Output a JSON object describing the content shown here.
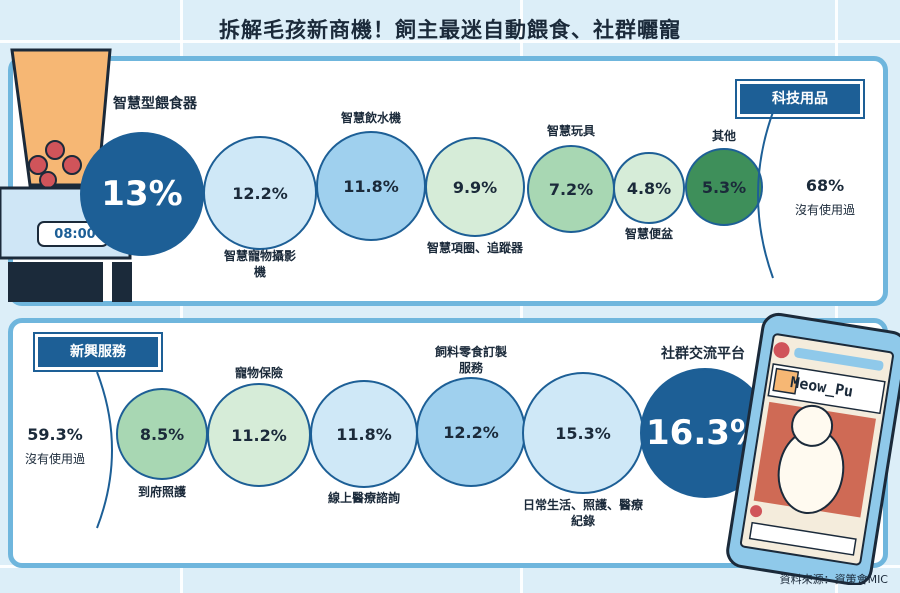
{
  "title": "拆解毛孩新商機！飼主最迷自動餵食、社群曬寵",
  "source": "資料來源：資策會MIC",
  "panel1_tag": "科技用品",
  "panel2_tag": "新興服務",
  "device": {
    "clock": "08:00"
  },
  "phone": {
    "username": "Meow_Pu"
  },
  "chart_data": [
    {
      "type": "bubble",
      "title": "科技用品",
      "categories": [
        "智慧型餵食器",
        "智慧寵物攝影機",
        "智慧飲水機",
        "智慧項圈、追蹤器",
        "智慧玩具",
        "智慧便盆",
        "其他"
      ],
      "values": [
        13,
        12.2,
        11.8,
        9.9,
        7.2,
        4.8,
        5.3
      ],
      "value_labels": [
        "13%",
        "12.2%",
        "11.8%",
        "9.9%",
        "7.2%",
        "4.8%",
        "5.3%"
      ],
      "unit": "%",
      "not_used": {
        "value": 68,
        "label": "68%",
        "text": "沒有使用過"
      }
    },
    {
      "type": "bubble",
      "title": "新興服務",
      "categories": [
        "到府照護",
        "寵物保險",
        "線上醫療諮詢",
        "飼料零食訂製服務",
        "日常生活、照護、醫療紀錄",
        "社群交流平台"
      ],
      "values": [
        8.5,
        11.2,
        11.8,
        12.2,
        15.3,
        16.3
      ],
      "value_labels": [
        "8.5%",
        "11.2%",
        "11.8%",
        "12.2%",
        "15.3%",
        "16.3%"
      ],
      "unit": "%",
      "not_used": {
        "value": 59.3,
        "label": "59.3%",
        "text": "沒有使用過"
      }
    }
  ],
  "colors": {
    "dark_blue": "#1d5f96",
    "light_blue": "#cfe8f7",
    "mid_blue": "#9fd0ee",
    "light_green": "#d6ecd8",
    "mid_green": "#a8d7b3",
    "dark_green": "#3e8f5a",
    "frame": "#6fb6dd"
  }
}
